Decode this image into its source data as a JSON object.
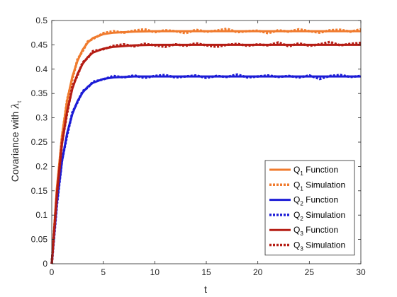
{
  "chart_data": {
    "type": "line",
    "xlabel": "t",
    "ylabel": {
      "text": "Covariance with ",
      "symbol": "λ",
      "subscript": "t"
    },
    "xlim": [
      0,
      30
    ],
    "ylim": [
      0,
      0.5
    ],
    "xticks": [
      0,
      5,
      10,
      15,
      20,
      25,
      30
    ],
    "yticks": [
      0,
      0.05,
      0.1,
      0.15,
      0.2,
      0.25,
      0.3,
      0.35,
      0.4,
      0.45,
      0.5
    ],
    "grid": false,
    "legend_position": "bottom-right",
    "series": [
      {
        "name": "Q_1 Function",
        "label_main": "Q",
        "label_sub": "1",
        "label_rest": " Function",
        "style": "solid",
        "color": "#f07b2e",
        "x": [
          0,
          0.5,
          1,
          1.5,
          2,
          2.5,
          3,
          3.5,
          4,
          5,
          6,
          8,
          10,
          15,
          20,
          25,
          30
        ],
        "y": [
          0,
          0.157,
          0.264,
          0.336,
          0.385,
          0.417,
          0.44,
          0.455,
          0.464,
          0.472,
          0.475,
          0.477,
          0.478,
          0.478,
          0.478,
          0.478,
          0.478
        ]
      },
      {
        "name": "Q_1 Simulation",
        "label_main": "Q",
        "label_sub": "1",
        "label_rest": " Simulation",
        "style": "dotted",
        "color": "#f07b2e",
        "x": [
          0,
          0.5,
          1,
          1.5,
          2,
          2.5,
          3,
          3.5,
          4,
          5,
          6,
          7,
          8,
          9,
          10,
          11,
          12,
          13,
          14,
          15,
          16,
          17,
          18,
          19,
          20,
          21,
          22,
          23,
          24,
          25,
          26,
          27,
          28,
          29,
          30
        ],
        "y": [
          0,
          0.15,
          0.262,
          0.338,
          0.38,
          0.42,
          0.437,
          0.457,
          0.462,
          0.474,
          0.478,
          0.475,
          0.479,
          0.482,
          0.476,
          0.48,
          0.478,
          0.474,
          0.481,
          0.477,
          0.479,
          0.483,
          0.476,
          0.478,
          0.479,
          0.474,
          0.48,
          0.477,
          0.482,
          0.478,
          0.475,
          0.48,
          0.481,
          0.477,
          0.482
        ]
      },
      {
        "name": "Q_2 Function",
        "label_main": "Q",
        "label_sub": "2",
        "label_rest": " Function",
        "style": "solid",
        "color": "#1c1cd6",
        "x": [
          0,
          0.5,
          1,
          1.5,
          2,
          2.5,
          3,
          3.5,
          4,
          5,
          6,
          8,
          10,
          15,
          20,
          25,
          30
        ],
        "y": [
          0,
          0.126,
          0.211,
          0.269,
          0.308,
          0.334,
          0.352,
          0.364,
          0.372,
          0.38,
          0.383,
          0.385,
          0.385,
          0.385,
          0.385,
          0.385,
          0.385
        ]
      },
      {
        "name": "Q_2 Simulation",
        "label_main": "Q",
        "label_sub": "2",
        "label_rest": " Simulation",
        "style": "dotted",
        "color": "#1c1cd6",
        "x": [
          0,
          0.5,
          1,
          1.5,
          2,
          2.5,
          3,
          3.5,
          4,
          5,
          6,
          7,
          8,
          9,
          10,
          11,
          12,
          13,
          14,
          15,
          16,
          17,
          18,
          19,
          20,
          21,
          22,
          23,
          24,
          25,
          26,
          27,
          28,
          29,
          30
        ],
        "y": [
          0,
          0.122,
          0.213,
          0.265,
          0.311,
          0.332,
          0.355,
          0.362,
          0.374,
          0.379,
          0.386,
          0.383,
          0.387,
          0.382,
          0.386,
          0.388,
          0.383,
          0.385,
          0.387,
          0.382,
          0.386,
          0.384,
          0.389,
          0.383,
          0.385,
          0.387,
          0.384,
          0.386,
          0.383,
          0.387,
          0.38,
          0.386,
          0.388,
          0.384,
          0.386
        ]
      },
      {
        "name": "Q_3 Function",
        "label_main": "Q",
        "label_sub": "3",
        "label_rest": " Function",
        "style": "solid",
        "color": "#b51d14",
        "x": [
          0,
          0.5,
          1,
          1.5,
          2,
          2.5,
          3,
          3.5,
          4,
          5,
          6,
          8,
          10,
          15,
          20,
          25,
          30
        ],
        "y": [
          0,
          0.147,
          0.247,
          0.314,
          0.36,
          0.39,
          0.411,
          0.425,
          0.434,
          0.442,
          0.446,
          0.449,
          0.45,
          0.45,
          0.45,
          0.45,
          0.45
        ]
      },
      {
        "name": "Q_3 Simulation",
        "label_main": "Q",
        "label_sub": "3",
        "label_rest": " Simulation",
        "style": "dotted",
        "color": "#b51d14",
        "x": [
          0,
          0.5,
          1,
          1.5,
          2,
          2.5,
          3,
          3.5,
          4,
          5,
          6,
          7,
          8,
          9,
          10,
          11,
          12,
          13,
          14,
          15,
          16,
          17,
          18,
          19,
          20,
          21,
          22,
          23,
          24,
          25,
          26,
          27,
          28,
          29,
          30
        ],
        "y": [
          0,
          0.14,
          0.25,
          0.31,
          0.365,
          0.387,
          0.414,
          0.423,
          0.437,
          0.441,
          0.448,
          0.451,
          0.447,
          0.452,
          0.449,
          0.446,
          0.451,
          0.448,
          0.453,
          0.449,
          0.446,
          0.45,
          0.452,
          0.448,
          0.451,
          0.449,
          0.455,
          0.447,
          0.453,
          0.448,
          0.451,
          0.456,
          0.449,
          0.452,
          0.454
        ]
      }
    ]
  }
}
